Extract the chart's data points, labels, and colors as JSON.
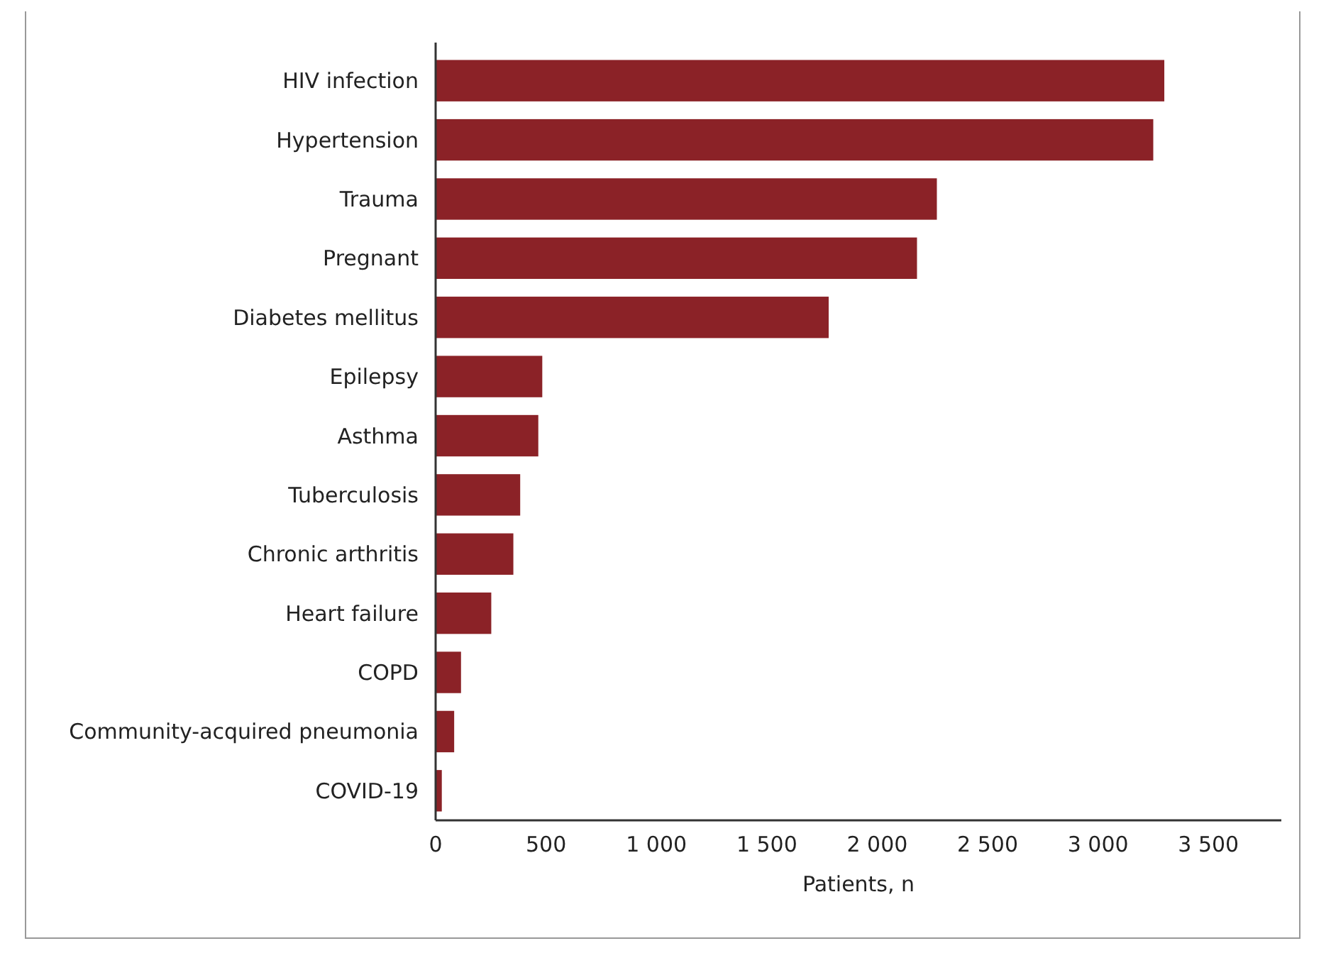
{
  "chart_data": {
    "type": "bar",
    "orientation": "horizontal",
    "xlabel": "Patients, n",
    "categories": [
      "HIV infection",
      "Hypertension",
      "Trauma",
      "Pregnant",
      "Diabetes mellitus",
      "Epilepsy",
      "Asthma",
      "Tuberculosis",
      "Chronic arthritis",
      "Heart failure",
      "COPD",
      "Community-acquired pneumonia",
      "COVID-19"
    ],
    "values": [
      3300,
      3250,
      2270,
      2180,
      1780,
      483,
      465,
      383,
      352,
      252,
      115,
      84,
      28
    ],
    "color": "#8b2227",
    "xlim": [
      0,
      3830
    ],
    "xticks": [
      0,
      500,
      {
        "value": 1000,
        "label": "1 000"
      },
      {
        "value": 1500,
        "label": "1 500"
      },
      {
        "value": 2000,
        "label": "2 000"
      },
      {
        "value": 2500,
        "label": "2 500"
      },
      {
        "value": 3000,
        "label": "3 000"
      },
      {
        "value": 3500,
        "label": "3 500"
      }
    ],
    "grid": false
  }
}
